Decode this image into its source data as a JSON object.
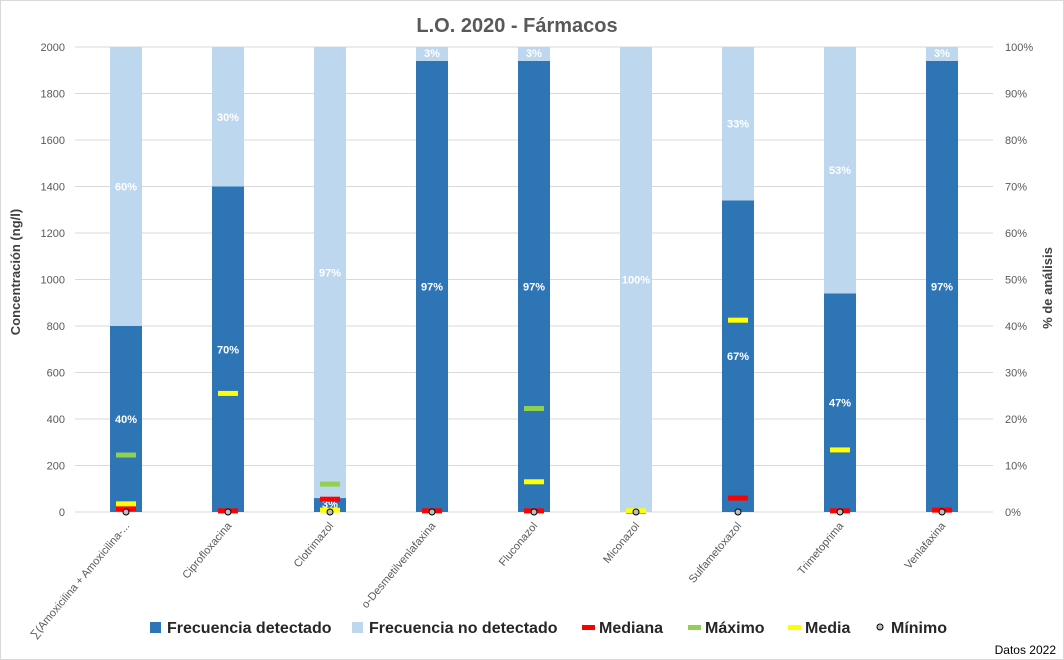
{
  "chart_data": {
    "type": "bar",
    "title": "L.O. 2020 - Fármacos",
    "ylabel": "Concentración (ng/l)",
    "y2label": "% de análisis",
    "ylim": [
      0,
      2000
    ],
    "y2lim": [
      0,
      100
    ],
    "yticks": [
      0,
      200,
      400,
      600,
      800,
      1000,
      1200,
      1400,
      1600,
      1800,
      2000
    ],
    "y2ticks": [
      "0%",
      "10%",
      "20%",
      "30%",
      "40%",
      "50%",
      "60%",
      "70%",
      "80%",
      "90%",
      "100%"
    ],
    "grid": true,
    "legend_position": "bottom",
    "categories": [
      "∑(Amoxicilina + Amoxicilina-...",
      "Ciprofloxacina",
      "Clotrimazol",
      "o-Desmetilvenlafaxina",
      "Fluconazol",
      "Miconazol",
      "Sulfametoxazol",
      "Trimetoprima",
      "Venlafaxina"
    ],
    "series": [
      {
        "name": "Frecuencia detectado",
        "axis": "right",
        "kind": "stacked-bar",
        "color": "#2e75b6",
        "values": [
          40,
          70,
          3,
          97,
          97,
          0,
          67,
          47,
          97
        ]
      },
      {
        "name": "Frecuencia no detectado",
        "axis": "right",
        "kind": "stacked-bar",
        "color": "#bdd7ee",
        "values": [
          60,
          30,
          97,
          3,
          3,
          100,
          33,
          53,
          3
        ]
      },
      {
        "name": "Mediana",
        "axis": "left",
        "kind": "dash",
        "color": "#ff0000",
        "values": [
          15,
          5,
          55,
          5,
          5,
          3,
          60,
          5,
          8
        ]
      },
      {
        "name": "Máximo",
        "axis": "left",
        "kind": "dash",
        "color": "#92d050",
        "values": [
          245,
          null,
          120,
          null,
          445,
          null,
          null,
          null,
          null
        ]
      },
      {
        "name": "Media",
        "axis": "left",
        "kind": "dash",
        "color": "#ffff00",
        "values": [
          35,
          510,
          8,
          null,
          130,
          5,
          825,
          267,
          null
        ]
      },
      {
        "name": "Mínimo",
        "axis": "left",
        "kind": "circle",
        "color": "#bfbfbf",
        "values": [
          0,
          0,
          0,
          0,
          0,
          0,
          0,
          0,
          0
        ]
      }
    ]
  },
  "footnote": "Datos 2022"
}
